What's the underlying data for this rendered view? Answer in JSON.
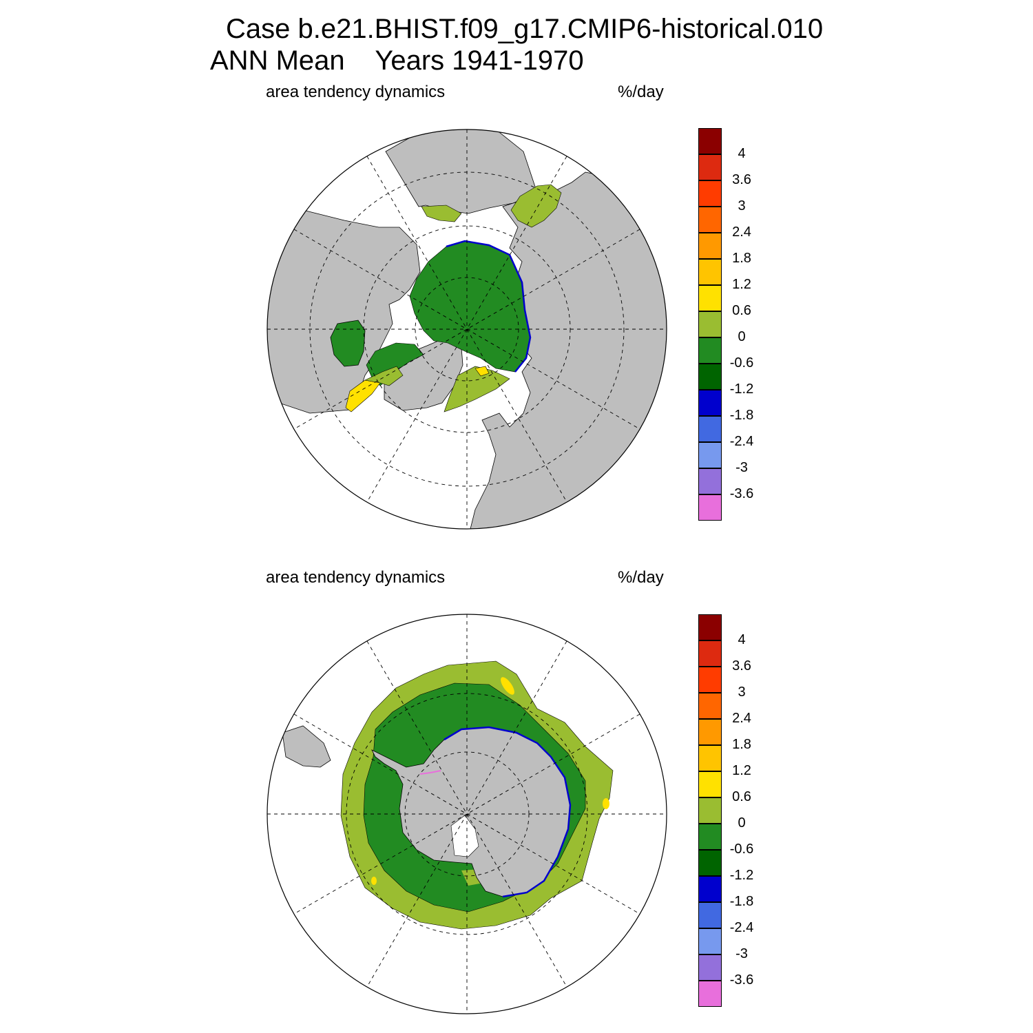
{
  "title": {
    "line1": "Case b.e21.BHIST.f09_g17.CMIP6-historical.010",
    "line2": "ANN Mean    Years 1941-1970"
  },
  "panels": [
    {
      "name": "north",
      "left_label": "area tendency dynamics",
      "right_label": "%/day"
    },
    {
      "name": "south",
      "left_label": "area tendency dynamics",
      "right_label": "%/day"
    }
  ],
  "colorbar": {
    "labels": [
      "4",
      "3.6",
      "3",
      "2.4",
      "1.8",
      "1.2",
      "0.6",
      "0",
      "-0.6",
      "-1.2",
      "-1.8",
      "-2.4",
      "-3",
      "-3.6"
    ],
    "colors": [
      "#8b0000",
      "#dd2a10",
      "#ff3c00",
      "#ff6600",
      "#ff9900",
      "#ffc400",
      "#ffe100",
      "#9abd31",
      "#228b22",
      "#006400",
      "#0000cd",
      "#4169e1",
      "#7799ee",
      "#9370db",
      "#e86fdc"
    ]
  },
  "map_colors": {
    "land": "#bebebe",
    "ocean": "#ffffff",
    "ice_light": "#9abd31",
    "ice_mid": "#228b22",
    "ice_dark": "#006400",
    "ice_yellow": "#ffe100",
    "ice_blue": "#0000cd",
    "ice_pink": "#e86fdc"
  }
}
